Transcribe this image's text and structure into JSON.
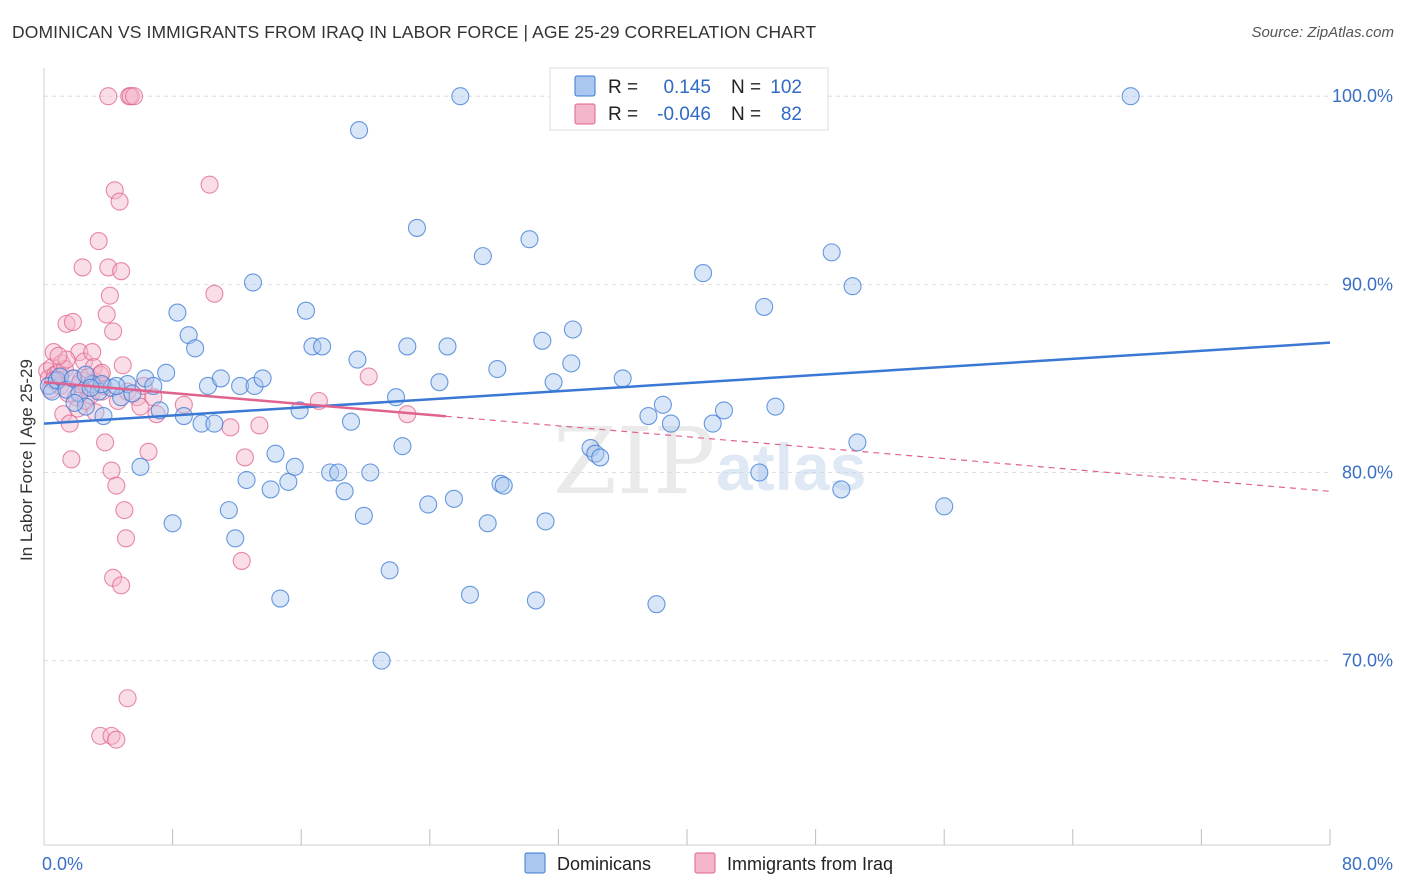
{
  "title": "DOMINICAN VS IMMIGRANTS FROM IRAQ IN LABOR FORCE | AGE 25-29 CORRELATION CHART",
  "source": "Source: ZipAtlas.com",
  "watermark": {
    "part1": "ZIP",
    "part2": "atlas"
  },
  "chart_data": {
    "type": "scatter",
    "title": "DOMINICAN VS IMMIGRANTS FROM IRAQ IN LABOR FORCE | AGE 25-29 CORRELATION CHART",
    "xlabel": "",
    "ylabel": "In Labor Force | Age 25-29",
    "xlim": [
      0,
      80
    ],
    "ylim": [
      60.2,
      101.5
    ],
    "x_tick_labels": [
      {
        "value": 0,
        "label": "0.0%"
      },
      {
        "value": 80,
        "label": "80.0%"
      }
    ],
    "x_minor_ticks": [
      8,
      16,
      24,
      32,
      40,
      48,
      56,
      64,
      72
    ],
    "y_ticks": [
      {
        "value": 100,
        "label": "100.0%"
      },
      {
        "value": 90,
        "label": "90.0%"
      },
      {
        "value": 80,
        "label": "80.0%"
      },
      {
        "value": 70,
        "label": "70.0%"
      }
    ],
    "grid": true,
    "legend_position": "top-center",
    "series": [
      {
        "name": "Dominicans",
        "color": "#3a78d4",
        "fill": "#aac8ef",
        "R": "0.145",
        "N": "102",
        "trend": {
          "x0": 0,
          "y0": 82.6,
          "x1": 80,
          "y1": 86.9,
          "dashed_from": null
        },
        "points": [
          [
            0.3,
            84.6
          ],
          [
            0.5,
            84.3
          ],
          [
            0.8,
            84.9
          ],
          [
            1.0,
            85.1
          ],
          [
            1.4,
            84.4
          ],
          [
            1.8,
            85.0
          ],
          [
            2.2,
            84.2
          ],
          [
            2.6,
            83.5
          ],
          [
            3.0,
            84.7
          ],
          [
            3.4,
            84.3
          ],
          [
            3.7,
            83.0
          ],
          [
            4.2,
            84.5
          ],
          [
            4.8,
            84.0
          ],
          [
            5.2,
            84.7
          ],
          [
            5.5,
            84.2
          ],
          [
            6.3,
            85.0
          ],
          [
            6.8,
            84.6
          ],
          [
            7.2,
            83.3
          ],
          [
            7.6,
            85.3
          ],
          [
            8.3,
            88.5
          ],
          [
            8.7,
            83.0
          ],
          [
            9.0,
            87.3
          ],
          [
            9.4,
            86.6
          ],
          [
            9.8,
            82.6
          ],
          [
            10.2,
            84.6
          ],
          [
            10.6,
            82.6
          ],
          [
            11.0,
            85.0
          ],
          [
            11.5,
            78.0
          ],
          [
            12.2,
            84.6
          ],
          [
            12.6,
            79.6
          ],
          [
            13.1,
            84.6
          ],
          [
            13.6,
            85.0
          ],
          [
            14.1,
            79.1
          ],
          [
            14.4,
            81.0
          ],
          [
            14.7,
            73.3
          ],
          [
            15.2,
            79.5
          ],
          [
            15.6,
            80.3
          ],
          [
            15.9,
            83.3
          ],
          [
            16.3,
            88.6
          ],
          [
            16.7,
            86.7
          ],
          [
            17.3,
            86.7
          ],
          [
            17.8,
            80.0
          ],
          [
            18.3,
            80.0
          ],
          [
            18.7,
            79.0
          ],
          [
            19.1,
            82.7
          ],
          [
            19.5,
            86.0
          ],
          [
            19.9,
            77.7
          ],
          [
            20.3,
            80.0
          ],
          [
            19.6,
            98.2
          ],
          [
            21.0,
            70.0
          ],
          [
            21.5,
            74.8
          ],
          [
            21.9,
            84.0
          ],
          [
            22.3,
            81.4
          ],
          [
            22.6,
            86.7
          ],
          [
            23.2,
            93.0
          ],
          [
            23.9,
            78.3
          ],
          [
            24.6,
            84.8
          ],
          [
            25.1,
            86.7
          ],
          [
            25.5,
            78.6
          ],
          [
            25.9,
            100.0
          ],
          [
            26.5,
            73.5
          ],
          [
            27.3,
            91.5
          ],
          [
            27.6,
            77.3
          ],
          [
            28.2,
            85.5
          ],
          [
            28.4,
            79.4
          ],
          [
            28.6,
            79.3
          ],
          [
            30.2,
            92.4
          ],
          [
            30.6,
            73.2
          ],
          [
            31.0,
            87.0
          ],
          [
            31.2,
            77.4
          ],
          [
            31.7,
            84.8
          ],
          [
            32.9,
            87.6
          ],
          [
            32.8,
            85.8
          ],
          [
            34.0,
            81.3
          ],
          [
            34.3,
            81.0
          ],
          [
            34.6,
            80.8
          ],
          [
            36.0,
            85.0
          ],
          [
            37.6,
            83.0
          ],
          [
            38.1,
            73.0
          ],
          [
            38.5,
            83.6
          ],
          [
            39.0,
            82.6
          ],
          [
            41.0,
            90.6
          ],
          [
            41.6,
            82.6
          ],
          [
            42.3,
            83.3
          ],
          [
            44.5,
            80.0
          ],
          [
            44.8,
            88.8
          ],
          [
            45.5,
            83.5
          ],
          [
            49.0,
            91.7
          ],
          [
            49.6,
            79.1
          ],
          [
            50.3,
            89.9
          ],
          [
            50.6,
            81.6
          ],
          [
            56.0,
            78.2
          ],
          [
            67.6,
            100.0
          ],
          [
            2.6,
            85.2
          ],
          [
            3.6,
            84.7
          ],
          [
            1.9,
            83.7
          ],
          [
            2.9,
            84.5
          ],
          [
            4.5,
            84.6
          ],
          [
            6.0,
            80.3
          ],
          [
            8.0,
            77.3
          ],
          [
            11.9,
            76.5
          ],
          [
            13.0,
            90.1
          ]
        ]
      },
      {
        "name": "Immigrants from Iraq",
        "color": "#e0638f",
        "fill": "#f4b6ca",
        "R": "-0.046",
        "N": "82",
        "trend": {
          "x0": 0,
          "y0": 84.8,
          "x1": 80,
          "y1": 79.0,
          "dashed_from": 25
        },
        "points": [
          [
            0.2,
            85.4
          ],
          [
            0.3,
            85.0
          ],
          [
            0.4,
            84.4
          ],
          [
            0.5,
            85.6
          ],
          [
            0.6,
            86.4
          ],
          [
            0.7,
            85.2
          ],
          [
            0.8,
            84.9
          ],
          [
            0.9,
            85.3
          ],
          [
            1.0,
            84.6
          ],
          [
            1.1,
            85.8
          ],
          [
            1.2,
            83.1
          ],
          [
            1.3,
            85.5
          ],
          [
            1.4,
            87.9
          ],
          [
            1.5,
            84.2
          ],
          [
            1.6,
            82.6
          ],
          [
            1.7,
            80.7
          ],
          [
            1.8,
            88.0
          ],
          [
            1.9,
            85.0
          ],
          [
            2.0,
            84.0
          ],
          [
            2.1,
            83.4
          ],
          [
            2.2,
            86.4
          ],
          [
            2.3,
            84.9
          ],
          [
            2.4,
            90.9
          ],
          [
            2.5,
            85.9
          ],
          [
            2.6,
            83.8
          ],
          [
            2.7,
            84.5
          ],
          [
            2.8,
            85.1
          ],
          [
            2.9,
            84.1
          ],
          [
            3.0,
            86.4
          ],
          [
            3.1,
            85.6
          ],
          [
            3.2,
            83.2
          ],
          [
            3.3,
            84.8
          ],
          [
            3.4,
            92.3
          ],
          [
            3.5,
            85.2
          ],
          [
            3.6,
            84.3
          ],
          [
            3.7,
            84.6
          ],
          [
            3.8,
            81.6
          ],
          [
            3.9,
            88.4
          ],
          [
            4.0,
            90.9
          ],
          [
            4.1,
            89.4
          ],
          [
            4.2,
            80.1
          ],
          [
            4.3,
            87.5
          ],
          [
            4.4,
            95.0
          ],
          [
            4.5,
            79.3
          ],
          [
            4.6,
            83.8
          ],
          [
            4.7,
            94.4
          ],
          [
            4.8,
            90.7
          ],
          [
            4.9,
            85.7
          ],
          [
            5.0,
            78.0
          ],
          [
            5.1,
            76.5
          ],
          [
            5.2,
            84.3
          ],
          [
            5.3,
            100.0
          ],
          [
            5.4,
            100.0
          ],
          [
            5.6,
            100.0
          ],
          [
            5.8,
            84.0
          ],
          [
            6.0,
            83.5
          ],
          [
            6.2,
            84.6
          ],
          [
            6.5,
            81.1
          ],
          [
            6.8,
            84.0
          ],
          [
            7.0,
            83.1
          ],
          [
            8.7,
            83.6
          ],
          [
            10.3,
            95.3
          ],
          [
            10.6,
            89.5
          ],
          [
            11.6,
            82.4
          ],
          [
            12.3,
            75.3
          ],
          [
            12.5,
            80.8
          ],
          [
            13.4,
            82.5
          ],
          [
            17.1,
            83.8
          ],
          [
            20.2,
            85.1
          ],
          [
            22.6,
            83.1
          ],
          [
            4.3,
            74.4
          ],
          [
            4.8,
            74.0
          ],
          [
            5.2,
            68.0
          ],
          [
            3.5,
            66.0
          ],
          [
            4.2,
            66.0
          ],
          [
            4.5,
            65.8
          ],
          [
            4.0,
            100.0
          ],
          [
            3.6,
            85.3
          ],
          [
            2.2,
            84.7
          ],
          [
            1.4,
            86.0
          ],
          [
            0.9,
            86.2
          ],
          [
            0.6,
            84.9
          ]
        ]
      }
    ]
  },
  "legend": {
    "items": [
      {
        "label": "Dominicans"
      },
      {
        "label": "Immigrants from Iraq"
      }
    ]
  },
  "stats_box": {
    "row1": {
      "r_label": "R =",
      "r_value": "0.145",
      "n_label": "N =",
      "n_value": "102"
    },
    "row2": {
      "r_label": "R =",
      "r_value": "-0.046",
      "n_label": "N =",
      "n_value": "82"
    }
  }
}
